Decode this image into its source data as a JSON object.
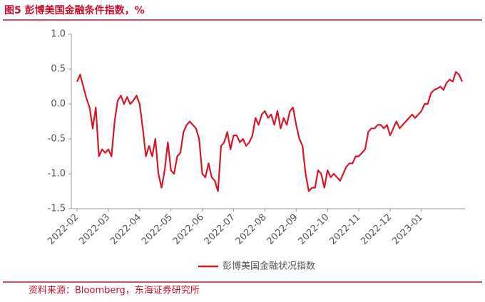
{
  "chart_data": {
    "type": "line",
    "title": "图5  彭博美国金融条件指数，%",
    "source": "资料来源：Bloomberg，东海证券研究所",
    "categories": [
      "2022-02",
      null,
      null,
      null,
      null,
      null,
      null,
      null,
      null,
      null,
      "2022-03",
      null,
      null,
      null,
      null,
      null,
      null,
      null,
      null,
      null,
      "2022-04",
      null,
      null,
      null,
      null,
      null,
      null,
      null,
      null,
      null,
      "2022-05",
      null,
      null,
      null,
      null,
      null,
      null,
      null,
      null,
      null,
      "2022-06",
      null,
      null,
      null,
      null,
      null,
      null,
      null,
      null,
      null,
      "2022-07",
      null,
      null,
      null,
      null,
      null,
      null,
      null,
      null,
      null,
      "2022-08",
      null,
      null,
      null,
      null,
      null,
      null,
      null,
      null,
      null,
      "2022-09",
      null,
      null,
      null,
      null,
      null,
      null,
      null,
      null,
      null,
      "2022-10",
      null,
      null,
      null,
      null,
      null,
      null,
      null,
      null,
      null,
      "2022-11",
      null,
      null,
      null,
      null,
      null,
      null,
      null,
      null,
      null,
      "2022-12",
      null,
      null,
      null,
      null,
      null,
      null,
      null,
      null,
      null,
      "2023-01",
      null,
      null,
      null,
      null,
      null,
      null,
      null,
      null,
      null,
      null,
      null,
      null,
      null
    ],
    "series": [
      {
        "name": "彭博美国金融状况指数",
        "color": "#d7182a",
        "values": [
          0.32,
          0.42,
          0.25,
          0.08,
          -0.05,
          -0.35,
          -0.05,
          -0.75,
          -0.65,
          -0.7,
          -0.65,
          -0.75,
          -0.25,
          0.05,
          0.12,
          0.0,
          0.1,
          0.0,
          0.05,
          0.12,
          0.0,
          -0.35,
          -0.75,
          -0.6,
          -0.75,
          -0.5,
          -1.0,
          -1.2,
          -0.95,
          -0.55,
          -0.95,
          -1.0,
          -0.75,
          -0.7,
          -0.4,
          -0.3,
          -0.25,
          -0.3,
          -0.35,
          -0.5,
          -1.0,
          -1.05,
          -0.85,
          -1.05,
          -1.1,
          -1.25,
          -0.6,
          -0.55,
          -0.4,
          -0.65,
          -0.45,
          -0.45,
          -0.55,
          -0.5,
          -0.6,
          -0.55,
          -0.45,
          -0.2,
          -0.3,
          -0.15,
          -0.1,
          -0.2,
          -0.15,
          -0.3,
          -0.1,
          -0.35,
          -0.2,
          -0.3,
          -0.1,
          -0.05,
          -0.3,
          -0.5,
          -0.6,
          -1.0,
          -1.25,
          -1.2,
          -1.2,
          -0.95,
          -1.0,
          -1.2,
          -0.95,
          -1.05,
          -1.0,
          -1.05,
          -1.1,
          -1.0,
          -0.9,
          -0.85,
          -0.85,
          -0.75,
          -0.75,
          -0.7,
          -0.65,
          -0.4,
          -0.35,
          -0.35,
          -0.3,
          -0.3,
          -0.35,
          -0.3,
          -0.45,
          -0.35,
          -0.25,
          -0.35,
          -0.3,
          -0.25,
          -0.2,
          -0.15,
          -0.2,
          -0.15,
          -0.1,
          0.0,
          0.0,
          0.15,
          0.2,
          0.22,
          0.25,
          0.2,
          0.3,
          0.35,
          0.32,
          0.46,
          0.42,
          0.32
        ]
      }
    ],
    "ylim": [
      -1.5,
      1
    ],
    "yticks": [
      {
        "value": 1,
        "label": "1.0"
      },
      0.5,
      {
        "value": 0,
        "label": "0.0"
      },
      -0.5,
      {
        "value": -1,
        "label": "-1.0"
      },
      -1.5
    ],
    "legend": "bottom"
  }
}
